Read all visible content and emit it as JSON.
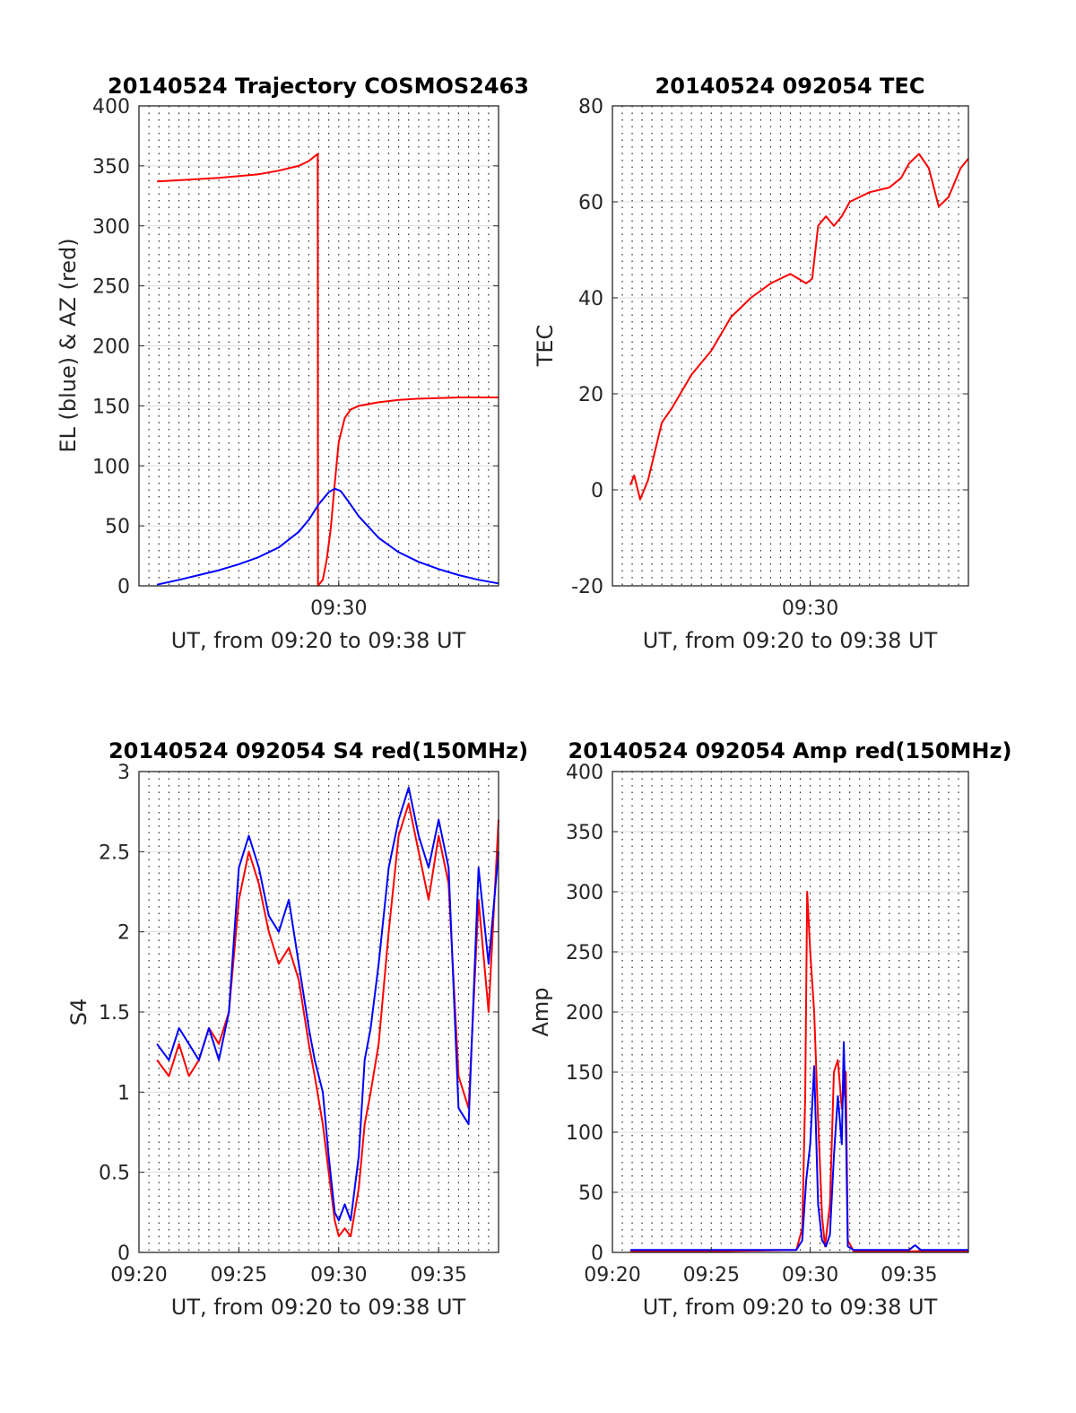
{
  "figure": {
    "panels": [
      {
        "id": "traj",
        "title": "20140524 Trajectory COSMOS2463",
        "xlabel": "UT, from 09:20 to 09:38 UT",
        "ylabel": "EL (blue) & AZ (red)"
      },
      {
        "id": "tec",
        "title": "20140524 092054 TEC",
        "xlabel": "UT, from 09:20 to 09:38 UT",
        "ylabel": "TEC"
      },
      {
        "id": "s4",
        "title": "20140524 092054 S4 red(150MHz)",
        "xlabel": "UT, from 09:20 to 09:38 UT",
        "ylabel": "S4"
      },
      {
        "id": "amp",
        "title": "20140524 092054 Amp red(150MHz)",
        "xlabel": "UT, from 09:20 to 09:38 UT",
        "ylabel": "Amp"
      }
    ]
  },
  "chart_data": [
    {
      "type": "line",
      "title": "20140524 Trajectory COSMOS2463",
      "xlabel": "UT, from 09:20 to 09:38 UT",
      "ylabel": "EL (blue) & AZ (red)",
      "x_unit": "minutes after 09:20 UT",
      "xlim": [
        0,
        18
      ],
      "ylim": [
        0,
        400
      ],
      "yticks": [
        "0",
        "50",
        "100",
        "150",
        "200",
        "250",
        "300",
        "350",
        "400"
      ],
      "xtick_values": [
        10
      ],
      "xtick_labels": [
        "09:30"
      ],
      "grid": "vertical dotted every 0.5 min, horizontal solid",
      "series": [
        {
          "color": "#ff0000",
          "x": [
            0.9,
            2,
            4,
            6,
            7,
            8,
            8.5,
            8.8,
            8.95,
            8.96,
            9.2,
            9.4,
            9.6,
            9.8,
            10.0,
            10.3,
            10.6,
            11,
            12,
            13,
            14,
            16,
            18
          ],
          "y": [
            337,
            338,
            340,
            343,
            346,
            350,
            354,
            358,
            360,
            0,
            5,
            22,
            48,
            85,
            120,
            140,
            147,
            150,
            153,
            155,
            156,
            157,
            157
          ]
        },
        {
          "color": "#0000ff",
          "x": [
            0.9,
            2,
            3,
            4,
            5,
            6,
            7,
            8,
            8.5,
            9,
            9.5,
            9.8,
            10.1,
            10.5,
            11,
            12,
            13,
            14,
            15,
            16,
            17,
            18
          ],
          "y": [
            1,
            5,
            9,
            13,
            18,
            24,
            32,
            45,
            55,
            68,
            78,
            81,
            79,
            70,
            58,
            40,
            28,
            20,
            14,
            9,
            5,
            2
          ]
        }
      ]
    },
    {
      "type": "line",
      "title": "20140524 092054 TEC",
      "xlabel": "UT, from 09:20 to 09:38 UT",
      "ylabel": "TEC",
      "x_unit": "minutes after 09:20 UT",
      "xlim": [
        0,
        18
      ],
      "ylim": [
        -20,
        80
      ],
      "yticks": [
        "-20",
        "0",
        "20",
        "40",
        "60",
        "80"
      ],
      "xtick_values": [
        10
      ],
      "xtick_labels": [
        "09:30"
      ],
      "grid": "vertical dotted every 0.5 min, horizontal solid",
      "series": [
        {
          "color": "#ff0000",
          "x": [
            0.9,
            1.1,
            1.4,
            1.8,
            2.5,
            3.0,
            4.0,
            5.0,
            6.0,
            7.0,
            8.0,
            9.0,
            9.8,
            10.1,
            10.4,
            10.8,
            11.2,
            11.6,
            12.0,
            12.5,
            13.0,
            14.0,
            14.6,
            15.0,
            15.5,
            16.0,
            16.5,
            17.0,
            17.6,
            18.0
          ],
          "y": [
            1,
            3,
            -2,
            2,
            14,
            17,
            24,
            29,
            36,
            40,
            43,
            45,
            43,
            44,
            55,
            57,
            55,
            57,
            60,
            61,
            62,
            63,
            65,
            68,
            70,
            67,
            59,
            61,
            67,
            69
          ]
        }
      ]
    },
    {
      "type": "line",
      "title": "20140524 092054 S4 red(150MHz)",
      "xlabel": "UT, from 09:20 to 09:38 UT",
      "ylabel": "S4",
      "x_unit": "minutes after 09:20 UT",
      "xlim": [
        0,
        18
      ],
      "ylim": [
        0,
        3
      ],
      "yticks": [
        "0",
        "0.5",
        "1",
        "1.5",
        "2",
        "2.5",
        "3"
      ],
      "xtick_values": [
        0,
        5,
        10,
        15
      ],
      "xtick_labels": [
        "09:20",
        "09:25",
        "09:30",
        "09:35"
      ],
      "grid": "vertical dotted every 0.5 min, horizontal solid",
      "series": [
        {
          "color": "#ff0000",
          "x": [
            0.9,
            1.5,
            2,
            2.5,
            3,
            3.5,
            4,
            4.5,
            5,
            5.5,
            6,
            6.5,
            7,
            7.5,
            8,
            8.5,
            8.8,
            9.2,
            9.5,
            9.8,
            10,
            10.3,
            10.6,
            11,
            11.3,
            11.6,
            12,
            12.5,
            13,
            13.5,
            14,
            14.5,
            15,
            15.5,
            16,
            16.5,
            17,
            17.5,
            18
          ],
          "y": [
            1.2,
            1.1,
            1.3,
            1.1,
            1.2,
            1.4,
            1.3,
            1.5,
            2.2,
            2.5,
            2.3,
            2.0,
            1.8,
            1.9,
            1.7,
            1.3,
            1.1,
            0.8,
            0.5,
            0.2,
            0.1,
            0.15,
            0.1,
            0.4,
            0.8,
            1.0,
            1.3,
            2.0,
            2.6,
            2.8,
            2.5,
            2.2,
            2.6,
            2.3,
            1.1,
            0.9,
            2.2,
            1.5,
            2.7
          ]
        },
        {
          "color": "#0000ff",
          "x": [
            0.9,
            1.5,
            2,
            2.5,
            3,
            3.5,
            4,
            4.5,
            5,
            5.5,
            6,
            6.5,
            7,
            7.5,
            8,
            8.5,
            8.8,
            9.2,
            9.5,
            9.8,
            10,
            10.3,
            10.6,
            11,
            11.3,
            11.6,
            12,
            12.5,
            13,
            13.5,
            14,
            14.5,
            15,
            15.5,
            16,
            16.5,
            17,
            17.5,
            18
          ],
          "y": [
            1.3,
            1.2,
            1.4,
            1.3,
            1.2,
            1.4,
            1.2,
            1.5,
            2.4,
            2.6,
            2.4,
            2.1,
            2.0,
            2.2,
            1.8,
            1.4,
            1.2,
            1.0,
            0.6,
            0.25,
            0.2,
            0.3,
            0.2,
            0.6,
            1.2,
            1.4,
            1.8,
            2.4,
            2.7,
            2.9,
            2.6,
            2.4,
            2.7,
            2.4,
            0.9,
            0.8,
            2.4,
            1.8,
            2.5
          ]
        }
      ]
    },
    {
      "type": "line",
      "title": "20140524 092054 Amp red(150MHz)",
      "xlabel": "UT, from 09:20 to 09:38 UT",
      "ylabel": "Amp",
      "x_unit": "minutes after 09:20 UT",
      "xlim": [
        0,
        18
      ],
      "ylim": [
        0,
        400
      ],
      "yticks": [
        "0",
        "50",
        "100",
        "150",
        "200",
        "250",
        "300",
        "350",
        "400"
      ],
      "xtick_values": [
        0,
        5,
        10,
        15
      ],
      "xtick_labels": [
        "09:20",
        "09:25",
        "09:30",
        "09:35"
      ],
      "grid": "vertical dotted every 0.5 min, horizontal solid",
      "series": [
        {
          "color": "#ff0000",
          "x": [
            0.9,
            5,
            9.3,
            9.6,
            9.75,
            9.85,
            10.0,
            10.2,
            10.4,
            10.6,
            10.75,
            11.0,
            11.2,
            11.4,
            11.6,
            11.8,
            11.9,
            12.2,
            15,
            18
          ],
          "y": [
            1,
            1,
            2,
            20,
            130,
            300,
            250,
            200,
            110,
            30,
            5,
            40,
            150,
            160,
            120,
            150,
            10,
            1,
            1,
            1
          ]
        },
        {
          "color": "#0000ff",
          "x": [
            0.9,
            5,
            9.3,
            9.6,
            9.8,
            10.0,
            10.2,
            10.4,
            10.6,
            10.8,
            11.0,
            11.2,
            11.4,
            11.6,
            11.7,
            11.8,
            11.9,
            12.2,
            15.0,
            15.3,
            15.6,
            18
          ],
          "y": [
            2,
            2,
            2,
            10,
            60,
            90,
            155,
            40,
            10,
            5,
            15,
            80,
            130,
            90,
            175,
            110,
            5,
            2,
            2,
            6,
            2,
            2
          ]
        }
      ]
    }
  ]
}
